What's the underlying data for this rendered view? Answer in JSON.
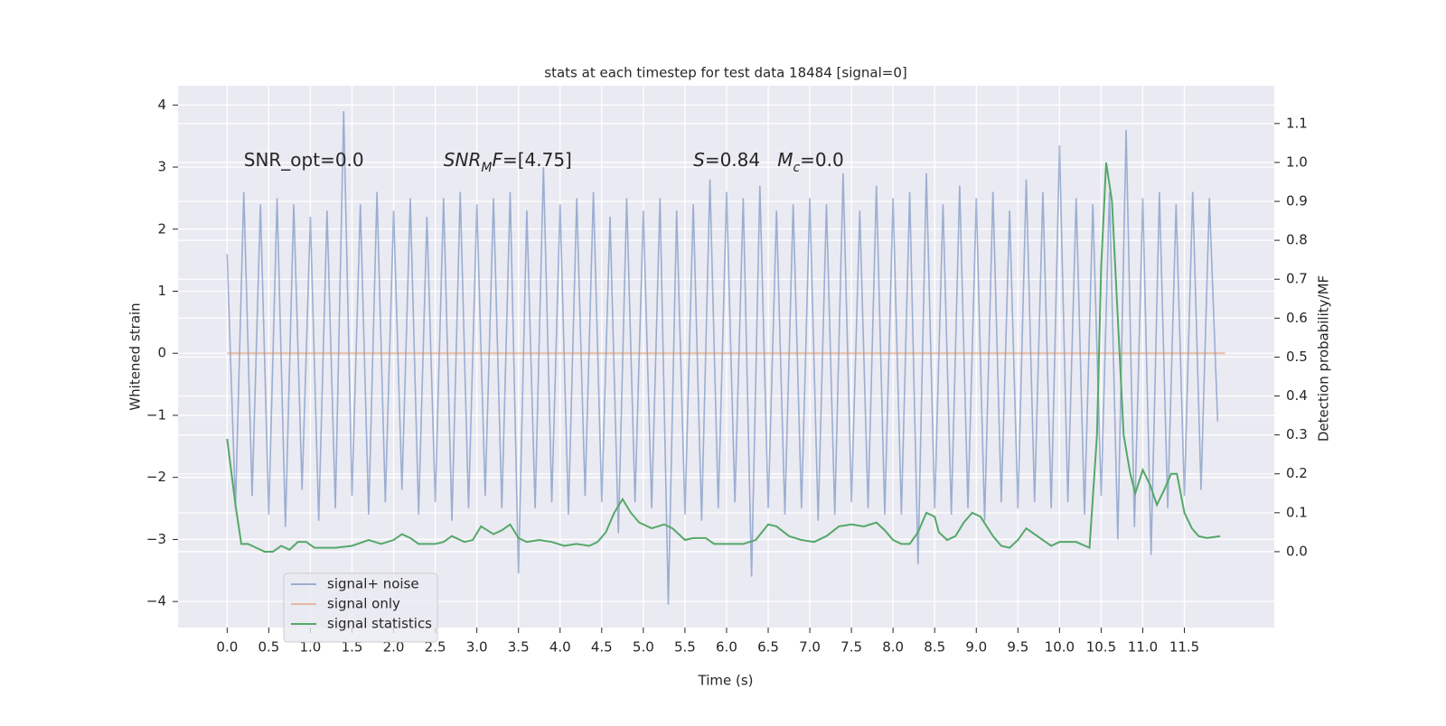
{
  "chart_data": {
    "type": "line",
    "title": "stats at each timestep for test data 18484 [signal=0]",
    "xlabel": "Time (s)",
    "ylabel": "Whitened strain",
    "y2label": "Detection probability/MF",
    "xlim": [
      -0.59,
      12.58
    ],
    "ylim": [
      -4.42,
      4.31
    ],
    "y2lim": [
      -0.195,
      1.197
    ],
    "xticks": [
      {
        "value": 0,
        "label": "0.0"
      },
      0.5,
      {
        "value": 1,
        "label": "1.0"
      },
      1.5,
      {
        "value": 2,
        "label": "2.0"
      },
      2.5,
      {
        "value": 3,
        "label": "3.0"
      },
      3.5,
      {
        "value": 4,
        "label": "4.0"
      },
      4.5,
      {
        "value": 5,
        "label": "5.0"
      },
      5.5,
      {
        "value": 6,
        "label": "6.0"
      },
      6.5,
      {
        "value": 7,
        "label": "7.0"
      },
      7.5,
      {
        "value": 8,
        "label": "8.0"
      },
      8.5,
      {
        "value": 9,
        "label": "9.0"
      },
      9.5,
      {
        "value": 10,
        "label": "10.0"
      },
      10.5,
      {
        "value": 11,
        "label": "11.0"
      },
      11.5
    ],
    "yticks": [
      {
        "value": -4,
        "label": "−4"
      },
      {
        "value": -3,
        "label": "−3"
      },
      {
        "value": -2,
        "label": "−2"
      },
      {
        "value": -1,
        "label": "−1"
      },
      0,
      1,
      2,
      3,
      4
    ],
    "y2ticks": [
      {
        "value": 0,
        "label": "0.0"
      },
      0.1,
      0.2,
      0.3,
      0.4,
      0.5,
      0.6,
      0.7,
      0.8,
      0.9,
      {
        "value": 1,
        "label": "1.0"
      },
      1.1
    ],
    "grid": true,
    "legend": "lower left",
    "annotations": [
      {
        "x": 0.2,
        "y": 3.1,
        "parts": [
          {
            "text": "SNR_opt=0.0"
          }
        ]
      },
      {
        "x": 2.6,
        "y": 3.1,
        "parts": [
          {
            "text": "SNR",
            "format": "italic"
          },
          {
            "text": "M",
            "format": "sub"
          },
          {
            "text": "F",
            "format": "italic"
          },
          {
            "text": "=[4.75]"
          }
        ]
      },
      {
        "x": 5.6,
        "y": 3.1,
        "parts": [
          {
            "text": "S",
            "format": "italic"
          },
          {
            "text": "=0.84   "
          },
          {
            "text": "M",
            "format": "italic"
          },
          {
            "text": "c",
            "format": "sub"
          },
          {
            "text": "=0.0"
          }
        ]
      }
    ],
    "series": [
      {
        "name": "signal+ noise",
        "color": "#4c72b0",
        "alpha": 0.5,
        "x": [
          0,
          0.1,
          0.2,
          0.3,
          0.4,
          0.5,
          0.6,
          0.7,
          0.8,
          0.9,
          1,
          1.1,
          1.2,
          1.3,
          1.4,
          1.5,
          1.6,
          1.7,
          1.8,
          1.9,
          2,
          2.1,
          2.2,
          2.3,
          2.4,
          2.5,
          2.6,
          2.7,
          2.8,
          2.9,
          3,
          3.1,
          3.2,
          3.3,
          3.4,
          3.5,
          3.6,
          3.7,
          3.8,
          3.9,
          4,
          4.1,
          4.2,
          4.3,
          4.4,
          4.5,
          4.6,
          4.7,
          4.8,
          4.9,
          5,
          5.1,
          5.2,
          5.3,
          5.4,
          5.5,
          5.6,
          5.7,
          5.8,
          5.9,
          6,
          6.1,
          6.2,
          6.3,
          6.4,
          6.5,
          6.6,
          6.7,
          6.8,
          6.9,
          7,
          7.1,
          7.2,
          7.3,
          7.4,
          7.5,
          7.6,
          7.7,
          7.8,
          7.9,
          8,
          8.1,
          8.2,
          8.3,
          8.4,
          8.5,
          8.6,
          8.7,
          8.8,
          8.9,
          9,
          9.1,
          9.2,
          9.3,
          9.4,
          9.5,
          9.6,
          9.7,
          9.8,
          9.9,
          10,
          10.1,
          10.2,
          10.3,
          10.4,
          10.5,
          10.6,
          10.7,
          10.8,
          10.9,
          11,
          11.1,
          11.2,
          11.3,
          11.4,
          11.5,
          11.6,
          11.7,
          11.8,
          11.9
        ],
        "values": [
          1.6,
          -2.5,
          2.6,
          -2.3,
          2.4,
          -2.6,
          2.5,
          -2.8,
          2.4,
          -2.2,
          2.2,
          -2.7,
          2.3,
          -2.5,
          3.9,
          -2.3,
          2.4,
          -2.6,
          2.6,
          -2.4,
          2.3,
          -2.2,
          2.5,
          -2.6,
          2.2,
          -2.4,
          2.5,
          -2.7,
          2.6,
          -2.5,
          2.4,
          -2.3,
          2.5,
          -2.5,
          2.6,
          -3.55,
          2.3,
          -2.5,
          3.0,
          -2.4,
          2.4,
          -2.6,
          2.5,
          -2.3,
          2.6,
          -2.4,
          2.2,
          -2.9,
          2.5,
          -2.4,
          2.3,
          -2.5,
          2.5,
          -4.05,
          2.3,
          -2.6,
          2.4,
          -2.7,
          2.8,
          -2.5,
          2.6,
          -2.4,
          2.5,
          -3.6,
          2.7,
          -2.5,
          2.3,
          -2.6,
          2.4,
          -2.5,
          2.5,
          -2.7,
          2.4,
          -2.6,
          2.9,
          -2.4,
          2.3,
          -2.5,
          2.7,
          -2.6,
          2.5,
          -2.6,
          2.6,
          -3.4,
          2.9,
          -2.5,
          2.4,
          -2.6,
          2.7,
          -2.5,
          2.5,
          -2.7,
          2.6,
          -2.4,
          2.3,
          -2.5,
          2.8,
          -2.4,
          2.6,
          -2.5,
          3.35,
          -2.4,
          2.5,
          -2.6,
          2.4,
          -2.3,
          2.6,
          -3.0,
          3.6,
          -2.8,
          2.5,
          -3.25,
          2.6,
          -2.5,
          2.4,
          -2.3,
          2.6,
          -2.2,
          2.5,
          -1.1
        ]
      },
      {
        "name": "signal only",
        "color": "#dd8452",
        "alpha": 0.5,
        "x": [
          0,
          11.99
        ],
        "values": [
          0,
          0
        ]
      },
      {
        "name": "signal statistics",
        "color": "#55a868",
        "alpha": 1,
        "axis": "y2",
        "x": [
          0,
          0.1,
          0.17,
          0.25,
          0.35,
          0.45,
          0.55,
          0.65,
          0.75,
          0.85,
          0.95,
          1.05,
          1.3,
          1.5,
          1.7,
          1.85,
          2,
          2.1,
          2.2,
          2.3,
          2.5,
          2.6,
          2.7,
          2.85,
          2.95,
          3.05,
          3.2,
          3.3,
          3.4,
          3.5,
          3.6,
          3.75,
          3.9,
          4.05,
          4.2,
          4.35,
          4.45,
          4.55,
          4.65,
          4.75,
          4.85,
          4.95,
          5.1,
          5.25,
          5.35,
          5.5,
          5.6,
          5.75,
          5.85,
          6,
          6.2,
          6.35,
          6.5,
          6.6,
          6.75,
          6.9,
          7.05,
          7.2,
          7.35,
          7.5,
          7.65,
          7.8,
          7.9,
          8,
          8.1,
          8.2,
          8.3,
          8.4,
          8.5,
          8.55,
          8.65,
          8.75,
          8.85,
          8.95,
          9.05,
          9.2,
          9.3,
          9.4,
          9.5,
          9.6,
          9.7,
          9.8,
          9.9,
          10,
          10.2,
          10.36,
          10.45,
          10.5,
          10.56,
          10.63,
          10.7,
          10.77,
          10.85,
          10.91,
          11,
          11.09,
          11.17,
          11.26,
          11.34,
          11.41,
          11.5,
          11.59,
          11.67,
          11.77,
          11.93
        ],
        "values": [
          0.29,
          0.12,
          0.02,
          0.02,
          0.01,
          0.0,
          0.0,
          0.015,
          0.005,
          0.025,
          0.025,
          0.01,
          0.01,
          0.015,
          0.03,
          0.02,
          0.03,
          0.045,
          0.035,
          0.02,
          0.02,
          0.025,
          0.04,
          0.025,
          0.03,
          0.065,
          0.045,
          0.055,
          0.07,
          0.035,
          0.025,
          0.03,
          0.025,
          0.015,
          0.02,
          0.015,
          0.025,
          0.05,
          0.1,
          0.135,
          0.1,
          0.075,
          0.06,
          0.07,
          0.06,
          0.03,
          0.035,
          0.035,
          0.02,
          0.02,
          0.02,
          0.03,
          0.07,
          0.065,
          0.04,
          0.03,
          0.025,
          0.04,
          0.065,
          0.07,
          0.065,
          0.075,
          0.055,
          0.03,
          0.02,
          0.02,
          0.05,
          0.1,
          0.09,
          0.05,
          0.03,
          0.04,
          0.075,
          0.1,
          0.09,
          0.04,
          0.015,
          0.01,
          0.03,
          0.06,
          0.045,
          0.03,
          0.015,
          0.025,
          0.025,
          0.01,
          0.3,
          0.73,
          1.0,
          0.9,
          0.6,
          0.3,
          0.2,
          0.15,
          0.21,
          0.17,
          0.12,
          0.16,
          0.2,
          0.2,
          0.1,
          0.06,
          0.04,
          0.035,
          0.04
        ]
      }
    ]
  }
}
